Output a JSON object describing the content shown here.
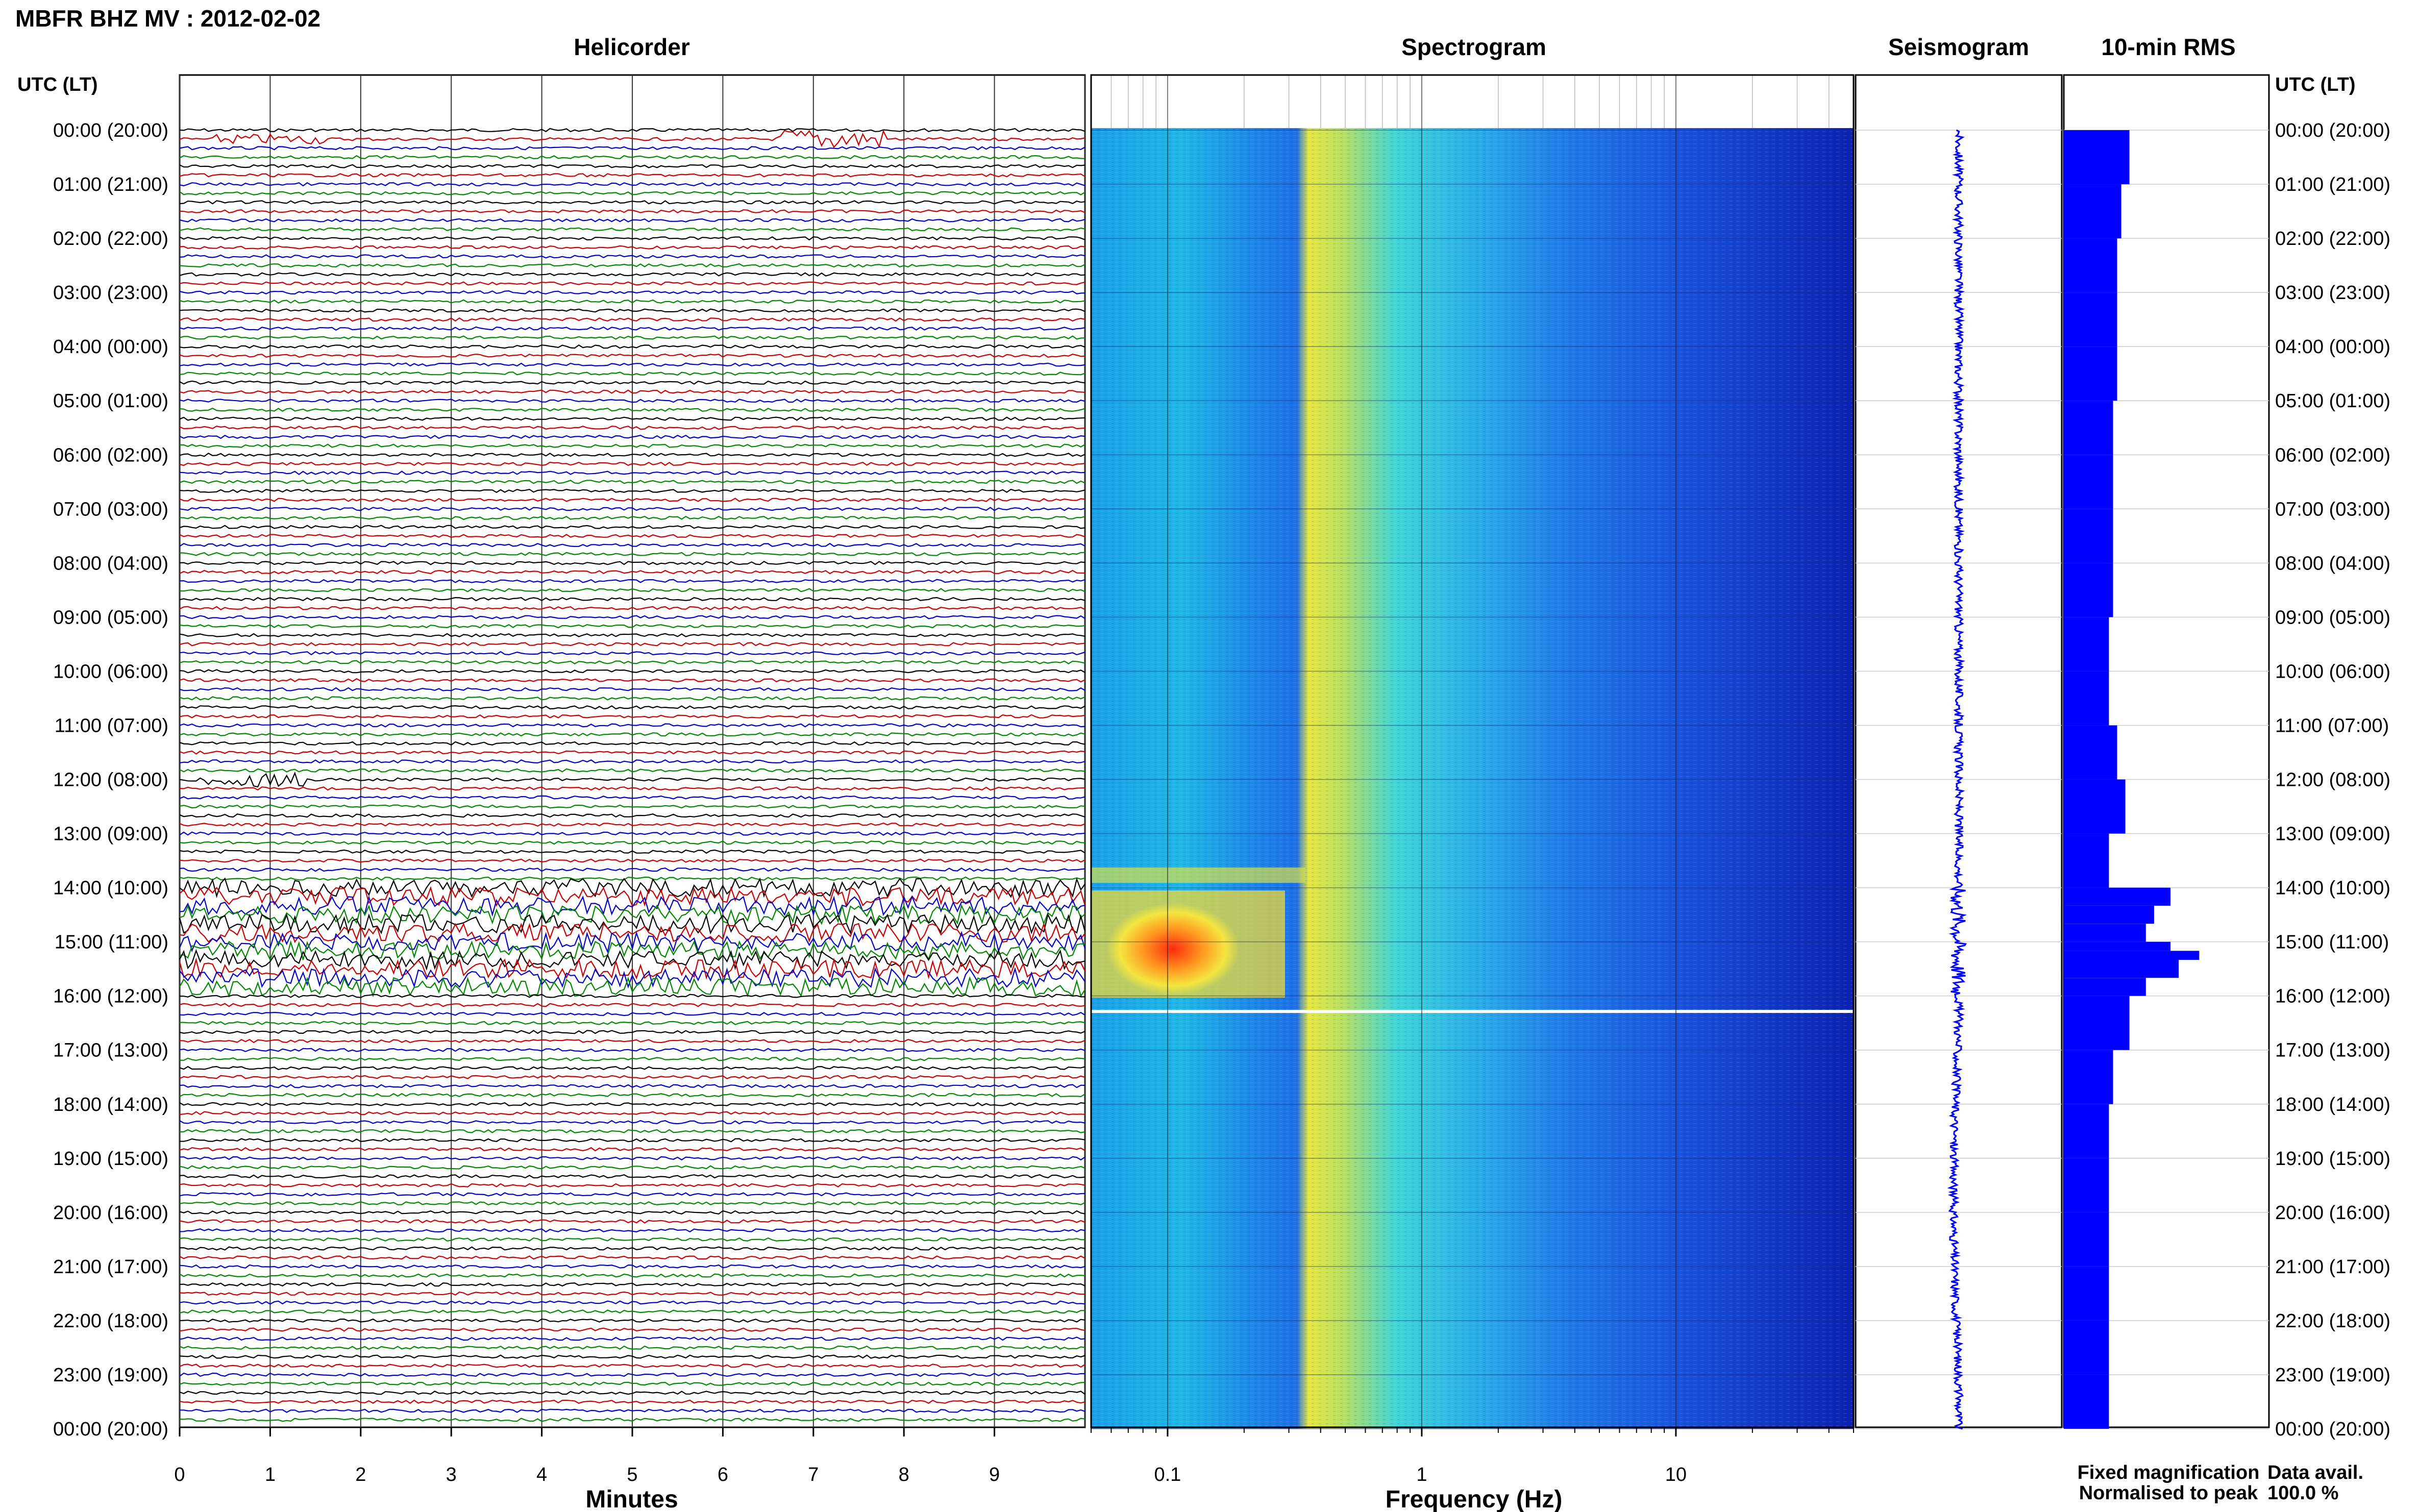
{
  "title": "MBFR BHZ MV : 2012-02-02",
  "panels": {
    "helicorder": "Helicorder",
    "spectrogram": "Spectrogram",
    "seismogram": "Seismogram",
    "rms": "10-min RMS"
  },
  "time_axis_header": "UTC (LT)",
  "time_labels": [
    "00:00 (20:00)",
    "01:00 (21:00)",
    "02:00 (22:00)",
    "03:00 (23:00)",
    "04:00 (00:00)",
    "05:00 (01:00)",
    "06:00 (02:00)",
    "07:00 (03:00)",
    "08:00 (04:00)",
    "09:00 (05:00)",
    "10:00 (06:00)",
    "11:00 (07:00)",
    "12:00 (08:00)",
    "13:00 (09:00)",
    "14:00 (10:00)",
    "15:00 (11:00)",
    "16:00 (12:00)",
    "17:00 (13:00)",
    "18:00 (14:00)",
    "19:00 (15:00)",
    "20:00 (16:00)",
    "21:00 (17:00)",
    "22:00 (18:00)",
    "23:00 (19:00)",
    "00:00 (20:00)"
  ],
  "helicorder_xlabel": "Minutes",
  "helicorder_ticks": [
    "0",
    "1",
    "2",
    "3",
    "4",
    "5",
    "6",
    "7",
    "8",
    "9"
  ],
  "spectrogram_xlabel": "Frequency (Hz)",
  "spectrogram_ticks": [
    "0.1",
    "1",
    "10"
  ],
  "legend": {
    "fixed": "Fixed magnification",
    "normalised": "Normalised to peak",
    "fixed_color": "#1010ff",
    "normalised_color": "#ff1010"
  },
  "availability": {
    "label": "Data avail.",
    "value": "100.0 %"
  },
  "colors": {
    "trace_cycle": [
      "#000000",
      "#cc0000",
      "#0000cc",
      "#008800"
    ],
    "seismogram": "#0000ff",
    "rms_bar": "#0000ff"
  },
  "chart_data": {
    "type": "heatmap",
    "description_units": "time of day (UTC) vs frequency (Hz); helicorder in minutes; RMS relative",
    "helicorder": {
      "x_range_minutes": [
        0,
        10
      ],
      "lines_per_hour": 6,
      "hours": 24,
      "quiet_trace_amplitude": 1,
      "events": [
        {
          "utc": "00:10",
          "minute": 1.0,
          "amp": 2
        },
        {
          "utc": "00:10",
          "minute": 7.2,
          "amp": 4
        },
        {
          "utc": "12:00",
          "minute": 0.8,
          "amp": 3
        },
        {
          "utc": "14:00",
          "minute": 5.0,
          "amp": 2.5
        },
        {
          "utc": "15:00",
          "minute": 5.0,
          "amp": 4
        }
      ],
      "high_amplitude_period_utc": [
        "14:00",
        "16:00"
      ]
    },
    "spectrogram": {
      "x_scale": "log",
      "x_range_hz": [
        0.05,
        50
      ],
      "dominant_band_hz": [
        0.2,
        1.0
      ],
      "strong_signal": {
        "utc_range": [
          "14:00",
          "16:00"
        ],
        "freq_hz": [
          0.03,
          0.08
        ]
      },
      "data_gap_utc": "16:15"
    },
    "rms": {
      "times_utc": [
        "00:00",
        "01:00",
        "02:00",
        "03:00",
        "04:00",
        "05:00",
        "06:00",
        "07:00",
        "08:00",
        "09:00",
        "10:00",
        "11:00",
        "12:00",
        "13:00",
        "14:00",
        "14:20",
        "14:40",
        "15:00",
        "15:10",
        "15:20",
        "15:40",
        "16:00",
        "17:00",
        "18:00",
        "19:00",
        "20:00",
        "21:00",
        "22:00",
        "23:00"
      ],
      "values": [
        1.6,
        1.4,
        1.3,
        1.3,
        1.3,
        1.2,
        1.2,
        1.2,
        1.2,
        1.1,
        1.1,
        1.3,
        1.5,
        1.1,
        2.6,
        2.2,
        2.0,
        2.6,
        3.3,
        2.8,
        2.0,
        1.6,
        1.2,
        1.1,
        1.1,
        1.1,
        1.1,
        1.1,
        1.1
      ],
      "xlim": [
        0,
        4
      ]
    }
  }
}
